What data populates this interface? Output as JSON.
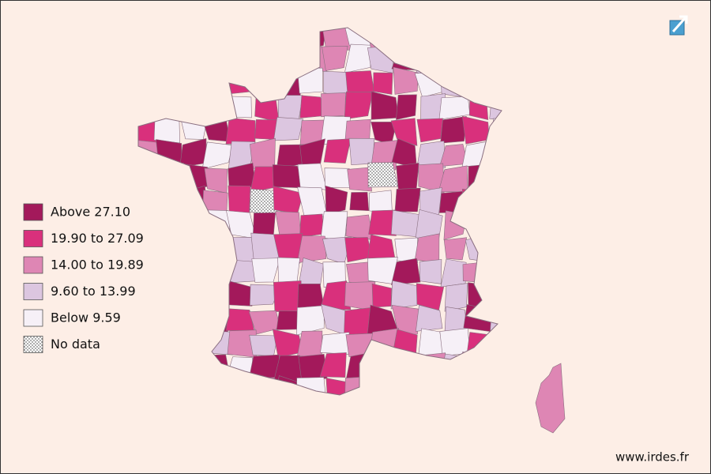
{
  "legend": {
    "items": [
      {
        "label": "Above 27.10",
        "color": "#a3195b"
      },
      {
        "label": "19.90 to 27.09",
        "color": "#d9307c"
      },
      {
        "label": "14.00 to 19.89",
        "color": "#de86b4"
      },
      {
        "label": "9.60 to 13.99",
        "color": "#dcc6e0"
      },
      {
        "label": "Below 9.59",
        "color": "#f6f0f7"
      },
      {
        "label": "No data",
        "color": "#ffffff",
        "pattern": "dots"
      }
    ]
  },
  "footer": {
    "source": "www.irdes.fr"
  }
}
